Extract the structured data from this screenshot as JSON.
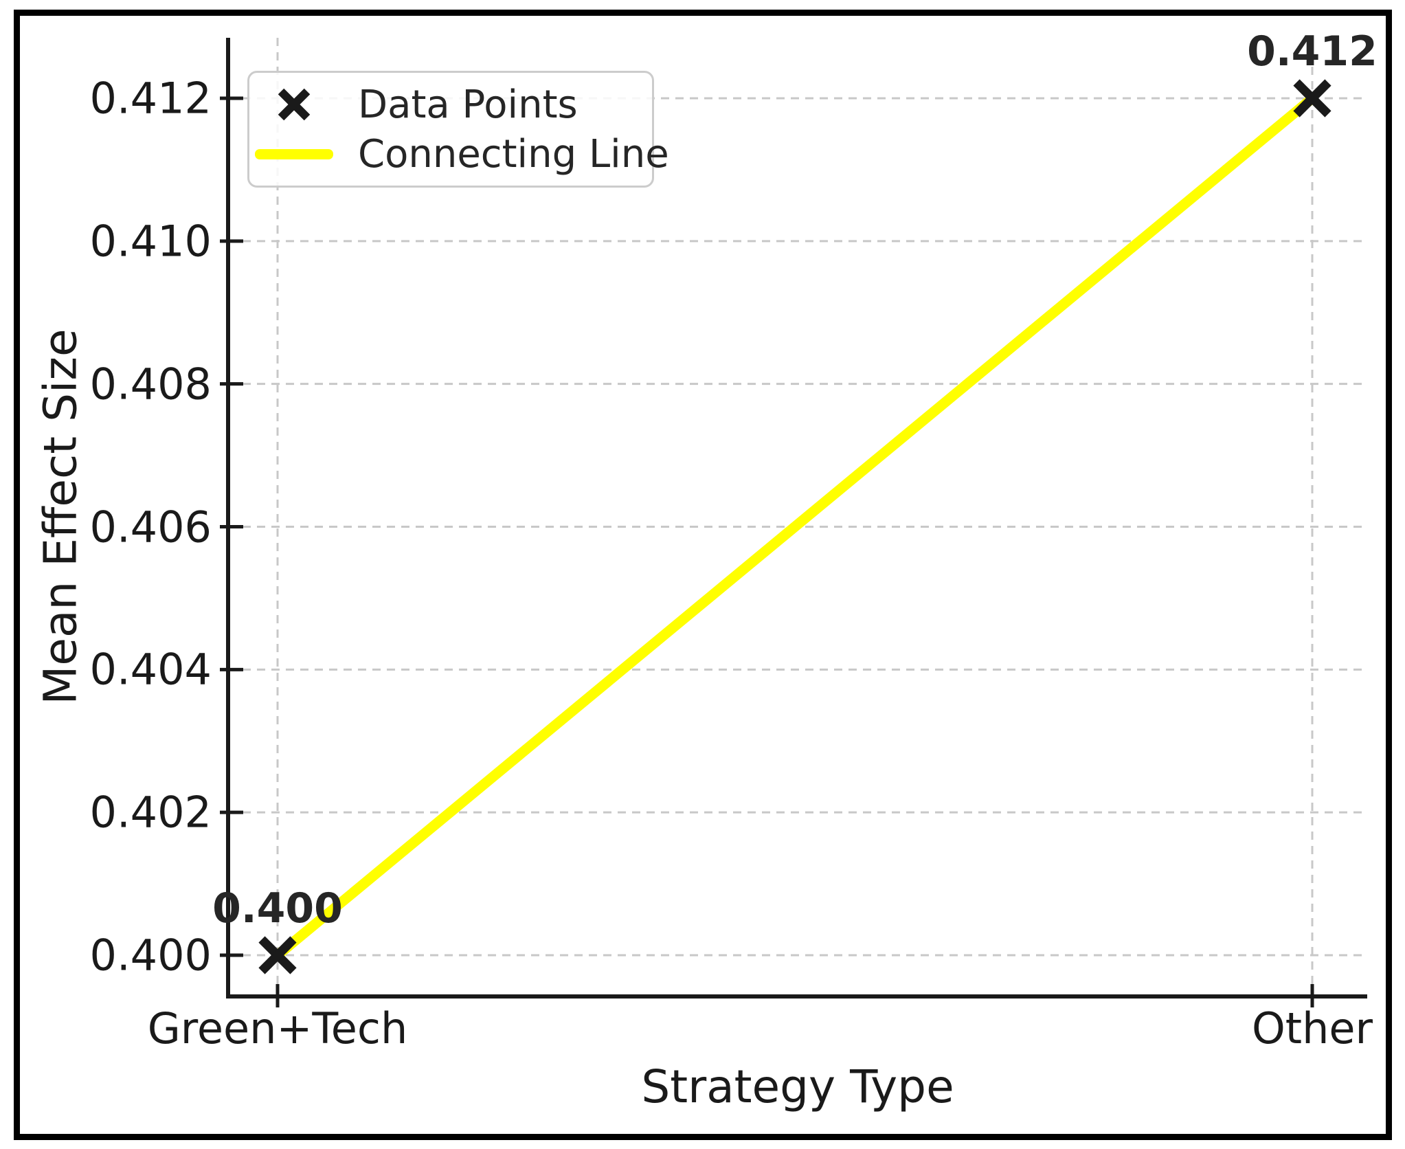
{
  "figure": {
    "background_color": "#ffffff",
    "frame_color": "#000000"
  },
  "chart_data": {
    "type": "line",
    "title": "",
    "xlabel": "Strategy Type",
    "ylabel": "Mean Effect Size",
    "categories": [
      "Green+Tech",
      "Other"
    ],
    "values": [
      0.4,
      0.412
    ],
    "value_labels": [
      "0.400",
      "0.412"
    ],
    "yticks": [
      "0.400",
      "0.402",
      "0.404",
      "0.406",
      "0.408",
      "0.410",
      "0.412"
    ],
    "ylim": [
      0.3994,
      0.4129
    ],
    "grid": true,
    "grid_style": "dashed",
    "legend": {
      "position": "upper-left",
      "entries": [
        {
          "label": "Data Points",
          "type": "marker-x",
          "color": "#1a1a1a"
        },
        {
          "label": "Connecting Line",
          "type": "line",
          "color": "#ffff00"
        }
      ]
    },
    "line_color": "#ffff00",
    "marker": "x",
    "marker_color": "#1a1a1a",
    "text_color": "#1a1a1a",
    "annotation_color": "#262626",
    "grid_color": "#c8c8c8",
    "spine_color": "#1a1a1a"
  }
}
